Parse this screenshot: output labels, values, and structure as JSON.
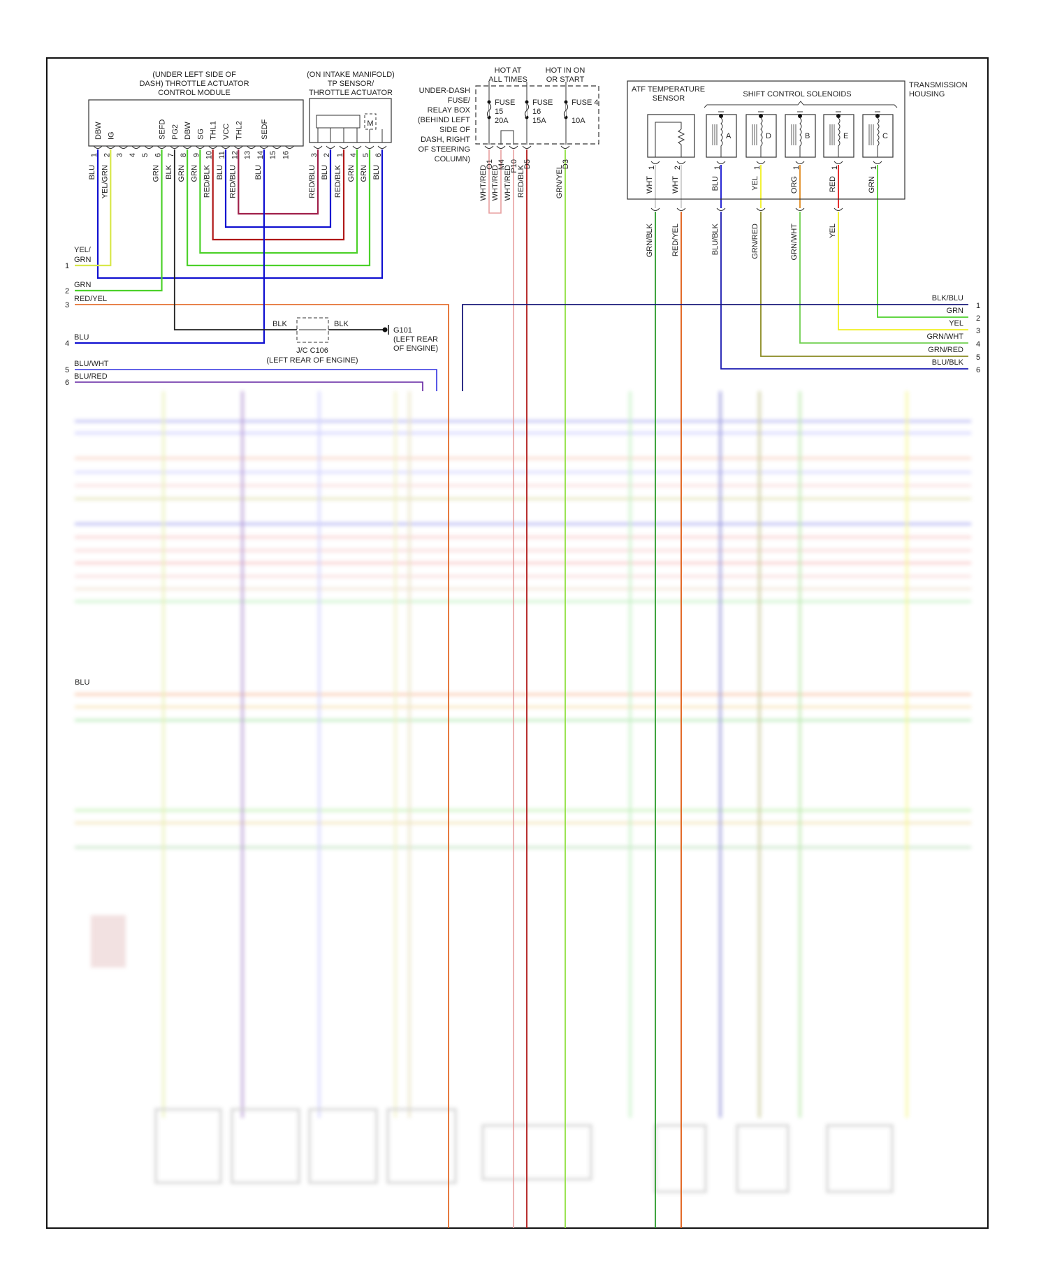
{
  "tacm": {
    "title_lines": [
      "(UNDER LEFT SIDE OF",
      "DASH) THROTTLE ACTUATOR",
      "CONTROL MODULE"
    ],
    "pins": [
      {
        "num": "1",
        "terminal": "DBW",
        "wire": "BLU",
        "color": "#1010d0"
      },
      {
        "num": "2",
        "terminal": "IG",
        "wire": "YEL/GRN",
        "color": "#d8e84a"
      },
      {
        "num": "3",
        "terminal": "",
        "wire": "",
        "color": ""
      },
      {
        "num": "4",
        "terminal": "",
        "wire": "",
        "color": ""
      },
      {
        "num": "5",
        "terminal": "",
        "wire": "",
        "color": ""
      },
      {
        "num": "6",
        "terminal": "SEFD",
        "wire": "GRN",
        "color": "#4cd12a"
      },
      {
        "num": "7",
        "terminal": "PG2",
        "wire": "BLK",
        "color": "#222222"
      },
      {
        "num": "8",
        "terminal": "DBW",
        "wire": "GRN",
        "color": "#4cd12a"
      },
      {
        "num": "9",
        "terminal": "SG",
        "wire": "GRN",
        "color": "#4cd12a"
      },
      {
        "num": "10",
        "terminal": "THL1",
        "wire": "RED/BLK",
        "color": "#b01818"
      },
      {
        "num": "11",
        "terminal": "VCC",
        "wire": "BLU",
        "color": "#1010d0"
      },
      {
        "num": "12",
        "terminal": "THL2",
        "wire": "RED/BLU",
        "color": "#a0204a"
      },
      {
        "num": "13",
        "terminal": "",
        "wire": "",
        "color": ""
      },
      {
        "num": "14",
        "terminal": "SEDF",
        "wire": "BLU",
        "color": "#1010d0"
      },
      {
        "num": "15",
        "terminal": "",
        "wire": "",
        "color": ""
      },
      {
        "num": "16",
        "terminal": "",
        "wire": "",
        "color": ""
      }
    ]
  },
  "tp_sensor": {
    "title_lines": [
      "(ON INTAKE MANIFOLD)",
      "TP SENSOR/",
      "THROTTLE ACTUATOR"
    ],
    "motor_label": "M",
    "pins": [
      {
        "num": "3",
        "wire": "RED/BLU",
        "color": "#a0204a"
      },
      {
        "num": "2",
        "wire": "BLU",
        "color": "#1010d0"
      },
      {
        "num": "1",
        "wire": "RED/BLK",
        "color": "#b01818"
      },
      {
        "num": "4",
        "wire": "GRN",
        "color": "#4cd12a"
      },
      {
        "num": "5",
        "wire": "GRN",
        "color": "#4cd12a"
      },
      {
        "num": "6",
        "wire": "BLU",
        "color": "#1010d0"
      }
    ]
  },
  "fuse_box": {
    "label_lines": [
      "UNDER-DASH",
      "FUSE/",
      "RELAY BOX",
      "(BEHIND LEFT",
      "SIDE OF",
      "DASH, RIGHT",
      "OF STEERING",
      "COLUMN)"
    ],
    "hot_at_all_times": [
      "HOT AT",
      "ALL TIMES"
    ],
    "hot_in_on_or_start": [
      "HOT IN ON",
      "OR START"
    ],
    "fuses": [
      {
        "name": "FUSE",
        "number": "15",
        "rating": "20A"
      },
      {
        "name": "FUSE",
        "number": "16",
        "rating": "15A"
      },
      {
        "name": "FUSE 4",
        "number": "",
        "rating": "10A"
      }
    ],
    "pins": [
      {
        "num": "O1",
        "wire": "WHT/RED",
        "color": "#e8a0a0"
      },
      {
        "num": "M4",
        "wire": "WHT/RED",
        "color": "#e8a0a0"
      },
      {
        "num": "P10",
        "wire": "WHT/RED",
        "color": "#e8a0a0"
      },
      {
        "num": "D5",
        "wire": "RED/BLK",
        "color": "#b01818"
      },
      {
        "num": "D3",
        "wire": "GRN/YEL",
        "color": "#90e040"
      }
    ]
  },
  "transmission": {
    "housing_label": [
      "TRANSMISSION",
      "HOUSING"
    ],
    "atf_label": [
      "ATF TEMPERATURE",
      "SENSOR"
    ],
    "solenoids_label": "SHIFT CONTROL SOLENOIDS",
    "atf_pins": [
      {
        "num": "1",
        "wire": "WHT",
        "color": "#cccccc",
        "out_wire": "GRN/BLK",
        "out_color": "#2a9a2a"
      },
      {
        "num": "2",
        "wire": "WHT",
        "color": "#cccccc",
        "out_wire": "RED/YEL",
        "out_color": "#e05a10"
      }
    ],
    "solenoids": [
      {
        "letter": "A",
        "num": "1",
        "wire": "BLU",
        "color": "#1010d0",
        "out_wire": "BLU/BLK",
        "out_color": "#1a1ab0"
      },
      {
        "letter": "D",
        "num": "1",
        "wire": "YEL",
        "color": "#f0f020",
        "out_wire": "GRN/RED",
        "out_color": "#8a8a20"
      },
      {
        "letter": "B",
        "num": "1",
        "wire": "ORG",
        "color": "#e08a20",
        "out_wire": "GRN/WHT",
        "out_color": "#70d050"
      },
      {
        "letter": "E",
        "num": "1",
        "wire": "RED",
        "color": "#e01818",
        "out_wire": "YEL",
        "out_color": "#f0f020"
      },
      {
        "letter": "C",
        "num": "1",
        "wire": "GRN",
        "color": "#4cd12a",
        "out_wire": "",
        "out_color": "#4cd12a"
      }
    ]
  },
  "left_connector": [
    {
      "num": "1",
      "wire": "YEL/ GRN",
      "color": "#d8e84a"
    },
    {
      "num": "2",
      "wire": "GRN",
      "color": "#4cd12a"
    },
    {
      "num": "3",
      "wire": "RED/YEL",
      "color": "#e05a10"
    },
    {
      "num": "4",
      "wire": "BLU",
      "color": "#1010d0"
    },
    {
      "num": "5",
      "wire": "BLU/WHT",
      "color": "#3030e0"
    },
    {
      "num": "6",
      "wire": "BLU/RED",
      "color": "#6020a0"
    }
  ],
  "junction": {
    "wire_in": "BLK",
    "wire_out": "BLK",
    "label_lines": [
      "J/C C106",
      "(LEFT REAR OF ENGINE)"
    ]
  },
  "ground": {
    "label_lines": [
      "G101",
      "(LEFT REAR",
      "OF ENGINE)"
    ]
  },
  "right_connector": [
    {
      "num": "1",
      "wire": "BLK/BLU",
      "color": "#1a1a7a"
    },
    {
      "num": "2",
      "wire": "GRN",
      "color": "#4cd12a"
    },
    {
      "num": "3",
      "wire": "YEL",
      "color": "#f0f020"
    },
    {
      "num": "4",
      "wire": "GRN/WHT",
      "color": "#70d050"
    },
    {
      "num": "5",
      "wire": "GRN/RED",
      "color": "#8a8a20"
    },
    {
      "num": "6",
      "wire": "BLU/BLK",
      "color": "#1a1ab0"
    }
  ],
  "lower_section": {
    "visible_label": "BLU"
  }
}
